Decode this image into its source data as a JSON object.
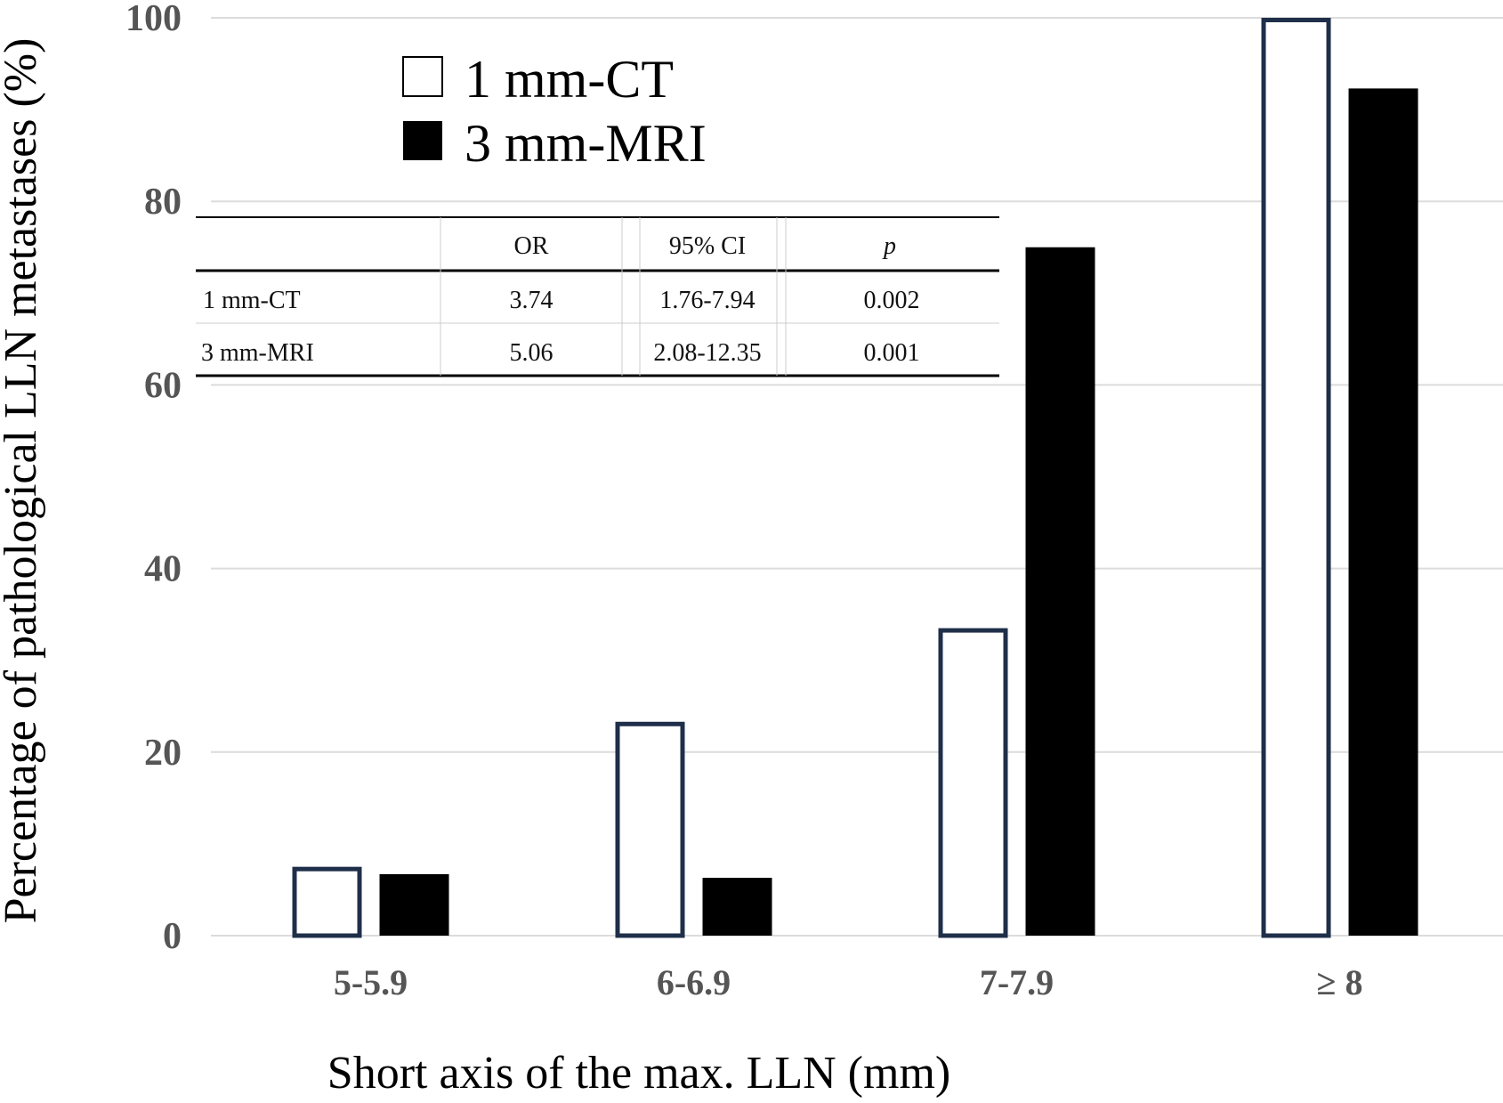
{
  "chart_data": {
    "type": "bar",
    "categories": [
      "5-5.9",
      "6-6.9",
      "7-7.9",
      "≥ 8"
    ],
    "series": [
      {
        "name": "1 mm-CT",
        "values": [
          7.5,
          23.3,
          33.5,
          100
        ],
        "style": "outline",
        "color": "#1f2f4a"
      },
      {
        "name": "3 mm-MRI",
        "values": [
          6.7,
          6.3,
          75,
          92.3
        ],
        "style": "filled",
        "color": "#000000"
      }
    ],
    "title": "",
    "xlabel": "Short axis of the max. LLN (mm)",
    "ylabel": "Percentage of pathological LLN metastases (%)",
    "ylim": [
      0,
      100
    ],
    "yticks": [
      "0",
      "20",
      "40",
      "60",
      "80",
      "100"
    ],
    "grid": true,
    "legend": "top-left"
  },
  "legend": {
    "items": [
      {
        "label": "1 mm-CT",
        "swatch": "outline"
      },
      {
        "label": "3 mm-MRI",
        "swatch": "filled"
      }
    ]
  },
  "table": {
    "headers": [
      "",
      "OR",
      "95% CI",
      "p"
    ],
    "rows": [
      [
        "1 mm-CT",
        "3.74",
        "1.76-7.94",
        "0.002"
      ],
      [
        "3 mm-MRI",
        "5.06",
        "2.08-12.35",
        "0.001"
      ]
    ]
  },
  "colors": {
    "outline_bar": "#1f2f4a",
    "filled_bar": "#000000",
    "grid": "#dcdcdc",
    "tick_text": "#555555"
  }
}
